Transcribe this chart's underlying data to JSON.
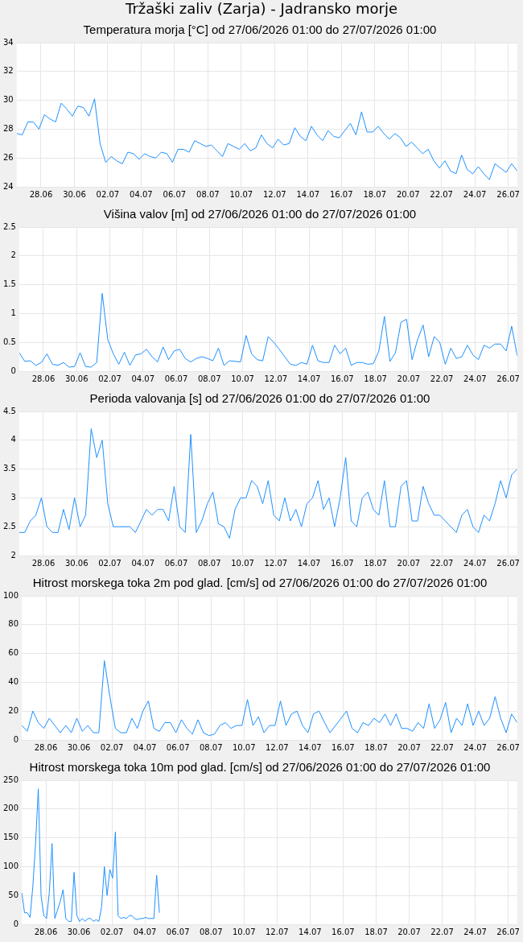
{
  "chart_data": [
    {
      "type": "line",
      "title": "Tržaški zaliv (Zarja) - Jadransko morje",
      "subtitle": "Temperatura morja [°C] od 27/06/2026 01:00 do 27/07/2026 01:00",
      "color": "#1e90ff",
      "marker": "none",
      "grid": true,
      "x": [
        "2026-06-27T01:00",
        "2026-06-27T09:00",
        "2026-06-27T17:00",
        "2026-06-28T01:00",
        "2026-06-28T09:00",
        "2026-06-28T17:00",
        "2026-06-29T01:00",
        "2026-06-29T09:00",
        "2026-06-29T17:00",
        "2026-06-30T01:00",
        "2026-06-30T09:00",
        "2026-06-30T17:00",
        "2026-07-01T01:00",
        "2026-07-01T09:00",
        "2026-07-01T17:00",
        "2026-07-02T01:00",
        "2026-07-02T09:00",
        "2026-07-02T17:00",
        "2026-07-03T01:00",
        "2026-07-03T09:00",
        "2026-07-03T17:00",
        "2026-07-04T01:00",
        "2026-07-04T09:00",
        "2026-07-04T17:00",
        "2026-07-05T01:00",
        "2026-07-05T09:00",
        "2026-07-05T17:00",
        "2026-07-06T01:00",
        "2026-07-06T09:00",
        "2026-07-06T17:00",
        "2026-07-07T01:00",
        "2026-07-07T09:00",
        "2026-07-07T17:00",
        "2026-07-08T01:00",
        "2026-07-08T09:00",
        "2026-07-08T17:00",
        "2026-07-09T01:00",
        "2026-07-09T09:00",
        "2026-07-09T17:00",
        "2026-07-10T01:00",
        "2026-07-10T09:00",
        "2026-07-10T17:00",
        "2026-07-11T01:00",
        "2026-07-11T09:00",
        "2026-07-11T17:00",
        "2026-07-12T01:00",
        "2026-07-12T09:00",
        "2026-07-12T17:00",
        "2026-07-13T01:00",
        "2026-07-13T09:00",
        "2026-07-13T17:00",
        "2026-07-14T01:00",
        "2026-07-14T09:00",
        "2026-07-14T17:00",
        "2026-07-15T01:00",
        "2026-07-15T09:00",
        "2026-07-15T17:00",
        "2026-07-16T01:00",
        "2026-07-16T09:00",
        "2026-07-16T17:00",
        "2026-07-17T01:00",
        "2026-07-17T09:00",
        "2026-07-17T17:00",
        "2026-07-18T01:00",
        "2026-07-18T09:00",
        "2026-07-18T17:00",
        "2026-07-19T01:00",
        "2026-07-19T09:00",
        "2026-07-19T17:00",
        "2026-07-20T01:00",
        "2026-07-20T09:00",
        "2026-07-20T17:00",
        "2026-07-21T01:00",
        "2026-07-21T09:00",
        "2026-07-21T17:00",
        "2026-07-22T01:00",
        "2026-07-22T09:00",
        "2026-07-22T17:00",
        "2026-07-23T01:00",
        "2026-07-23T09:00",
        "2026-07-23T17:00",
        "2026-07-24T01:00",
        "2026-07-24T09:00",
        "2026-07-24T17:00",
        "2026-07-25T01:00",
        "2026-07-25T09:00",
        "2026-07-25T17:00",
        "2026-07-26T01:00",
        "2026-07-26T09:00",
        "2026-07-26T17:00",
        "2026-07-27T01:00"
      ],
      "values": [
        27.7,
        27.6,
        28.5,
        28.5,
        28.0,
        29.0,
        28.7,
        28.5,
        29.8,
        29.4,
        28.9,
        29.6,
        29.5,
        28.9,
        30.1,
        27.0,
        25.7,
        26.1,
        25.8,
        25.6,
        26.4,
        26.3,
        25.9,
        26.3,
        26.1,
        26.0,
        26.4,
        26.3,
        25.7,
        26.6,
        26.6,
        26.4,
        27.2,
        27.0,
        26.8,
        26.9,
        26.5,
        26.1,
        27.0,
        26.8,
        26.6,
        27.0,
        26.5,
        26.7,
        27.6,
        27.0,
        26.7,
        27.3,
        26.9,
        27.0,
        28.1,
        27.5,
        27.2,
        28.2,
        27.6,
        27.2,
        27.9,
        27.5,
        27.4,
        27.9,
        28.4,
        27.6,
        29.2,
        27.8,
        27.8,
        28.2,
        27.7,
        27.3,
        27.7,
        27.4,
        26.8,
        27.1,
        26.7,
        26.3,
        26.6,
        25.8,
        25.3,
        25.8,
        25.1,
        24.9,
        26.2,
        25.2,
        24.9,
        25.4,
        24.9,
        24.5,
        25.6,
        25.3,
        25.0,
        25.6,
        25.1
      ],
      "xlim": [
        "2026-06-27T01:00",
        "2026-07-27T01:00"
      ],
      "xticks": [
        {
          "value": "2026-06-28T12:00",
          "label": "28.06"
        },
        {
          "value": "2026-06-30T12:00",
          "label": "30.06"
        },
        {
          "value": "2026-07-02T12:00",
          "label": "02.07"
        },
        {
          "value": "2026-07-04T12:00",
          "label": "04.07"
        },
        {
          "value": "2026-07-06T12:00",
          "label": "06.07"
        },
        {
          "value": "2026-07-08T12:00",
          "label": "08.07"
        },
        {
          "value": "2026-07-10T12:00",
          "label": "10.07"
        },
        {
          "value": "2026-07-12T12:00",
          "label": "12.07"
        },
        {
          "value": "2026-07-14T12:00",
          "label": "14.07"
        },
        {
          "value": "2026-07-16T12:00",
          "label": "16.07"
        },
        {
          "value": "2026-07-18T12:00",
          "label": "18.07"
        },
        {
          "value": "2026-07-20T12:00",
          "label": "20.07"
        },
        {
          "value": "2026-07-22T12:00",
          "label": "22.07"
        },
        {
          "value": "2026-07-24T12:00",
          "label": "24.07"
        },
        {
          "value": "2026-07-26T12:00",
          "label": "26.07"
        }
      ],
      "ylim": [
        24,
        34
      ],
      "yticks": [
        24,
        26,
        28,
        30,
        32,
        34
      ]
    },
    {
      "type": "line",
      "title": "Višina valov [m] od 27/06/2026 01:00 do 27/07/2026 01:00",
      "color": "#1e90ff",
      "marker": "none",
      "grid": true,
      "x": [
        "2026-06-27T01:00",
        "2026-06-27T09:00",
        "2026-06-27T17:00",
        "2026-06-28T01:00",
        "2026-06-28T09:00",
        "2026-06-28T17:00",
        "2026-06-29T01:00",
        "2026-06-29T09:00",
        "2026-06-29T17:00",
        "2026-06-30T01:00",
        "2026-06-30T09:00",
        "2026-06-30T17:00",
        "2026-07-01T01:00",
        "2026-07-01T09:00",
        "2026-07-01T17:00",
        "2026-07-02T01:00",
        "2026-07-02T09:00",
        "2026-07-02T17:00",
        "2026-07-03T01:00",
        "2026-07-03T09:00",
        "2026-07-03T17:00",
        "2026-07-04T01:00",
        "2026-07-04T09:00",
        "2026-07-04T17:00",
        "2026-07-05T01:00",
        "2026-07-05T09:00",
        "2026-07-05T17:00",
        "2026-07-06T01:00",
        "2026-07-06T09:00",
        "2026-07-06T17:00",
        "2026-07-07T01:00",
        "2026-07-07T09:00",
        "2026-07-07T17:00",
        "2026-07-08T01:00",
        "2026-07-08T09:00",
        "2026-07-08T17:00",
        "2026-07-09T01:00",
        "2026-07-09T09:00",
        "2026-07-09T17:00",
        "2026-07-10T01:00",
        "2026-07-10T09:00",
        "2026-07-10T17:00",
        "2026-07-11T01:00",
        "2026-07-11T09:00",
        "2026-07-11T17:00",
        "2026-07-12T01:00",
        "2026-07-12T09:00",
        "2026-07-12T17:00",
        "2026-07-13T01:00",
        "2026-07-13T09:00",
        "2026-07-13T17:00",
        "2026-07-14T01:00",
        "2026-07-14T09:00",
        "2026-07-14T17:00",
        "2026-07-15T01:00",
        "2026-07-15T09:00",
        "2026-07-15T17:00",
        "2026-07-16T01:00",
        "2026-07-16T09:00",
        "2026-07-16T17:00",
        "2026-07-17T01:00",
        "2026-07-17T09:00",
        "2026-07-17T17:00",
        "2026-07-18T01:00",
        "2026-07-18T09:00",
        "2026-07-18T17:00",
        "2026-07-19T01:00",
        "2026-07-19T09:00",
        "2026-07-19T17:00",
        "2026-07-20T01:00",
        "2026-07-20T09:00",
        "2026-07-20T17:00",
        "2026-07-21T01:00",
        "2026-07-21T09:00",
        "2026-07-21T17:00",
        "2026-07-22T01:00",
        "2026-07-22T09:00",
        "2026-07-22T17:00",
        "2026-07-23T01:00",
        "2026-07-23T09:00",
        "2026-07-23T17:00",
        "2026-07-24T01:00",
        "2026-07-24T09:00",
        "2026-07-24T17:00",
        "2026-07-25T01:00",
        "2026-07-25T09:00",
        "2026-07-25T17:00",
        "2026-07-26T01:00",
        "2026-07-26T09:00",
        "2026-07-26T17:00",
        "2026-07-27T01:00"
      ],
      "values": [
        0.32,
        0.17,
        0.18,
        0.1,
        0.15,
        0.3,
        0.12,
        0.1,
        0.15,
        0.07,
        0.08,
        0.32,
        0.08,
        0.07,
        0.15,
        1.35,
        0.55,
        0.3,
        0.12,
        0.33,
        0.1,
        0.28,
        0.3,
        0.38,
        0.25,
        0.16,
        0.42,
        0.2,
        0.35,
        0.38,
        0.22,
        0.16,
        0.22,
        0.25,
        0.22,
        0.18,
        0.4,
        0.1,
        0.18,
        0.17,
        0.16,
        0.62,
        0.3,
        0.2,
        0.18,
        0.6,
        0.5,
        0.38,
        0.25,
        0.12,
        0.1,
        0.15,
        0.12,
        0.45,
        0.18,
        0.15,
        0.15,
        0.45,
        0.3,
        0.4,
        0.1,
        0.15,
        0.15,
        0.12,
        0.13,
        0.35,
        0.95,
        0.17,
        0.32,
        0.85,
        0.9,
        0.2,
        0.55,
        0.8,
        0.25,
        0.6,
        0.5,
        0.12,
        0.4,
        0.22,
        0.25,
        0.45,
        0.28,
        0.2,
        0.45,
        0.4,
        0.47,
        0.47,
        0.35,
        0.78,
        0.27
      ],
      "xlim": [
        "2026-06-27T01:00",
        "2026-07-27T01:00"
      ],
      "xticks": [
        {
          "value": "2026-06-28T12:00",
          "label": "28.06"
        },
        {
          "value": "2026-06-30T12:00",
          "label": "30.06"
        },
        {
          "value": "2026-07-02T12:00",
          "label": "02.07"
        },
        {
          "value": "2026-07-04T12:00",
          "label": "04.07"
        },
        {
          "value": "2026-07-06T12:00",
          "label": "06.07"
        },
        {
          "value": "2026-07-08T12:00",
          "label": "08.07"
        },
        {
          "value": "2026-07-10T12:00",
          "label": "10.07"
        },
        {
          "value": "2026-07-12T12:00",
          "label": "12.07"
        },
        {
          "value": "2026-07-14T12:00",
          "label": "14.07"
        },
        {
          "value": "2026-07-16T12:00",
          "label": "16.07"
        },
        {
          "value": "2026-07-18T12:00",
          "label": "18.07"
        },
        {
          "value": "2026-07-20T12:00",
          "label": "20.07"
        },
        {
          "value": "2026-07-22T12:00",
          "label": "22.07"
        },
        {
          "value": "2026-07-24T12:00",
          "label": "24.07"
        },
        {
          "value": "2026-07-26T12:00",
          "label": "26.07"
        }
      ],
      "ylim": [
        0,
        2.5
      ],
      "yticks": [
        0,
        0.5,
        1,
        1.5,
        2,
        2.5
      ]
    },
    {
      "type": "line",
      "title": "Perioda valovanja [s] od 27/06/2026 01:00 do 27/07/2026 01:00",
      "color": "#1e90ff",
      "marker": "none",
      "grid": true,
      "x": [
        "2026-06-27T01:00",
        "2026-06-27T09:00",
        "2026-06-27T17:00",
        "2026-06-28T01:00",
        "2026-06-28T09:00",
        "2026-06-28T17:00",
        "2026-06-29T01:00",
        "2026-06-29T09:00",
        "2026-06-29T17:00",
        "2026-06-30T01:00",
        "2026-06-30T09:00",
        "2026-06-30T17:00",
        "2026-07-01T01:00",
        "2026-07-01T09:00",
        "2026-07-01T17:00",
        "2026-07-02T01:00",
        "2026-07-02T09:00",
        "2026-07-02T17:00",
        "2026-07-03T01:00",
        "2026-07-03T09:00",
        "2026-07-03T17:00",
        "2026-07-04T01:00",
        "2026-07-04T09:00",
        "2026-07-04T17:00",
        "2026-07-05T01:00",
        "2026-07-05T09:00",
        "2026-07-05T17:00",
        "2026-07-06T01:00",
        "2026-07-06T09:00",
        "2026-07-06T17:00",
        "2026-07-07T01:00",
        "2026-07-07T09:00",
        "2026-07-07T17:00",
        "2026-07-08T01:00",
        "2026-07-08T09:00",
        "2026-07-08T17:00",
        "2026-07-09T01:00",
        "2026-07-09T09:00",
        "2026-07-09T17:00",
        "2026-07-10T01:00",
        "2026-07-10T09:00",
        "2026-07-10T17:00",
        "2026-07-11T01:00",
        "2026-07-11T09:00",
        "2026-07-11T17:00",
        "2026-07-12T01:00",
        "2026-07-12T09:00",
        "2026-07-12T17:00",
        "2026-07-13T01:00",
        "2026-07-13T09:00",
        "2026-07-13T17:00",
        "2026-07-14T01:00",
        "2026-07-14T09:00",
        "2026-07-14T17:00",
        "2026-07-15T01:00",
        "2026-07-15T09:00",
        "2026-07-15T17:00",
        "2026-07-16T01:00",
        "2026-07-16T09:00",
        "2026-07-16T17:00",
        "2026-07-17T01:00",
        "2026-07-17T09:00",
        "2026-07-17T17:00",
        "2026-07-18T01:00",
        "2026-07-18T09:00",
        "2026-07-18T17:00",
        "2026-07-19T01:00",
        "2026-07-19T09:00",
        "2026-07-19T17:00",
        "2026-07-20T01:00",
        "2026-07-20T09:00",
        "2026-07-20T17:00",
        "2026-07-21T01:00",
        "2026-07-21T09:00",
        "2026-07-21T17:00",
        "2026-07-22T01:00",
        "2026-07-22T09:00",
        "2026-07-22T17:00",
        "2026-07-23T01:00",
        "2026-07-23T09:00",
        "2026-07-23T17:00",
        "2026-07-24T01:00",
        "2026-07-24T09:00",
        "2026-07-24T17:00",
        "2026-07-25T01:00",
        "2026-07-25T09:00",
        "2026-07-25T17:00",
        "2026-07-26T01:00",
        "2026-07-26T09:00",
        "2026-07-26T17:00",
        "2026-07-27T01:00"
      ],
      "values": [
        2.4,
        2.4,
        2.6,
        2.7,
        3.0,
        2.5,
        2.4,
        2.4,
        2.8,
        2.45,
        3.0,
        2.5,
        2.7,
        4.2,
        3.7,
        4.0,
        2.9,
        2.5,
        2.5,
        2.5,
        2.5,
        2.4,
        2.6,
        2.8,
        2.7,
        2.8,
        2.8,
        2.6,
        3.2,
        2.5,
        2.4,
        4.1,
        2.4,
        2.6,
        2.9,
        3.1,
        2.55,
        2.5,
        2.3,
        2.8,
        3.0,
        3.0,
        3.3,
        3.2,
        2.9,
        3.3,
        2.7,
        2.6,
        3.0,
        2.6,
        2.8,
        2.5,
        2.9,
        3.0,
        3.3,
        2.8,
        3.0,
        2.5,
        3.0,
        3.7,
        2.6,
        2.5,
        3.0,
        3.1,
        2.8,
        2.7,
        3.3,
        2.5,
        2.5,
        3.2,
        3.3,
        2.6,
        2.6,
        3.2,
        2.9,
        2.7,
        2.7,
        2.6,
        2.5,
        2.4,
        2.7,
        2.8,
        2.5,
        2.4,
        2.7,
        2.6,
        2.9,
        3.3,
        3.0,
        3.4,
        3.5
      ],
      "xlim": [
        "2026-06-27T01:00",
        "2026-07-27T01:00"
      ],
      "xticks": [
        {
          "value": "2026-06-28T12:00",
          "label": "28.06"
        },
        {
          "value": "2026-06-30T12:00",
          "label": "30.06"
        },
        {
          "value": "2026-07-02T12:00",
          "label": "02.07"
        },
        {
          "value": "2026-07-04T12:00",
          "label": "04.07"
        },
        {
          "value": "2026-07-06T12:00",
          "label": "06.07"
        },
        {
          "value": "2026-07-08T12:00",
          "label": "08.07"
        },
        {
          "value": "2026-07-10T12:00",
          "label": "10.07"
        },
        {
          "value": "2026-07-12T12:00",
          "label": "12.07"
        },
        {
          "value": "2026-07-14T12:00",
          "label": "14.07"
        },
        {
          "value": "2026-07-16T12:00",
          "label": "16.07"
        },
        {
          "value": "2026-07-18T12:00",
          "label": "18.07"
        },
        {
          "value": "2026-07-20T12:00",
          "label": "20.07"
        },
        {
          "value": "2026-07-22T12:00",
          "label": "22.07"
        },
        {
          "value": "2026-07-24T12:00",
          "label": "24.07"
        },
        {
          "value": "2026-07-26T12:00",
          "label": "26.07"
        }
      ],
      "ylim": [
        2,
        4.5
      ],
      "yticks": [
        2,
        2.5,
        3,
        3.5,
        4,
        4.5
      ]
    },
    {
      "type": "line",
      "title": "Hitrost morskega toka 2m pod glad. [cm/s] od 27/06/2026 01:00 do 27/07/2026 01:00",
      "color": "#1e90ff",
      "marker": "none",
      "grid": true,
      "x": [
        "2026-06-27T01:00",
        "2026-06-27T09:00",
        "2026-06-27T17:00",
        "2026-06-28T01:00",
        "2026-06-28T09:00",
        "2026-06-28T17:00",
        "2026-06-29T01:00",
        "2026-06-29T09:00",
        "2026-06-29T17:00",
        "2026-06-30T01:00",
        "2026-06-30T09:00",
        "2026-06-30T17:00",
        "2026-07-01T01:00",
        "2026-07-01T09:00",
        "2026-07-01T17:00",
        "2026-07-02T01:00",
        "2026-07-02T09:00",
        "2026-07-02T17:00",
        "2026-07-03T01:00",
        "2026-07-03T09:00",
        "2026-07-03T17:00",
        "2026-07-04T01:00",
        "2026-07-04T09:00",
        "2026-07-04T17:00",
        "2026-07-05T01:00",
        "2026-07-05T09:00",
        "2026-07-05T17:00",
        "2026-07-06T01:00",
        "2026-07-06T09:00",
        "2026-07-06T17:00",
        "2026-07-07T01:00",
        "2026-07-07T09:00",
        "2026-07-07T17:00",
        "2026-07-08T01:00",
        "2026-07-08T09:00",
        "2026-07-08T17:00",
        "2026-07-09T01:00",
        "2026-07-09T09:00",
        "2026-07-09T17:00",
        "2026-07-10T01:00",
        "2026-07-10T09:00",
        "2026-07-10T17:00",
        "2026-07-11T01:00",
        "2026-07-11T09:00",
        "2026-07-11T17:00",
        "2026-07-12T01:00",
        "2026-07-12T09:00",
        "2026-07-12T17:00",
        "2026-07-13T01:00",
        "2026-07-13T09:00",
        "2026-07-13T17:00",
        "2026-07-14T01:00",
        "2026-07-14T09:00",
        "2026-07-14T17:00",
        "2026-07-15T01:00",
        "2026-07-15T09:00",
        "2026-07-15T17:00",
        "2026-07-16T01:00",
        "2026-07-16T09:00",
        "2026-07-16T17:00",
        "2026-07-17T01:00",
        "2026-07-17T09:00",
        "2026-07-17T17:00",
        "2026-07-18T01:00",
        "2026-07-18T09:00",
        "2026-07-18T17:00",
        "2026-07-19T01:00",
        "2026-07-19T09:00",
        "2026-07-19T17:00",
        "2026-07-20T01:00",
        "2026-07-20T09:00",
        "2026-07-20T17:00",
        "2026-07-21T01:00",
        "2026-07-21T09:00",
        "2026-07-21T17:00",
        "2026-07-22T01:00",
        "2026-07-22T09:00",
        "2026-07-22T17:00",
        "2026-07-23T01:00",
        "2026-07-23T09:00",
        "2026-07-23T17:00",
        "2026-07-24T01:00",
        "2026-07-24T09:00",
        "2026-07-24T17:00",
        "2026-07-25T01:00",
        "2026-07-25T09:00",
        "2026-07-25T17:00",
        "2026-07-26T01:00",
        "2026-07-26T09:00",
        "2026-07-26T17:00",
        "2026-07-27T01:00"
      ],
      "values": [
        10,
        6,
        20,
        12,
        8,
        15,
        10,
        5,
        10,
        5,
        15,
        6,
        10,
        5,
        5,
        55,
        30,
        8,
        5,
        5,
        15,
        8,
        20,
        27,
        8,
        6,
        12,
        12,
        5,
        14,
        8,
        4,
        14,
        5,
        3,
        4,
        10,
        12,
        8,
        10,
        10,
        28,
        10,
        16,
        5,
        10,
        10,
        27,
        10,
        18,
        20,
        10,
        5,
        18,
        20,
        12,
        5,
        10,
        15,
        20,
        8,
        5,
        12,
        10,
        15,
        12,
        18,
        10,
        18,
        8,
        8,
        6,
        12,
        8,
        25,
        8,
        14,
        26,
        5,
        15,
        10,
        25,
        10,
        20,
        10,
        15,
        30,
        15,
        5,
        18,
        12
      ],
      "xlim": [
        "2026-06-27T01:00",
        "2026-07-27T01:00"
      ],
      "xticks": [
        {
          "value": "2026-06-28T12:00",
          "label": "28.06"
        },
        {
          "value": "2026-06-30T12:00",
          "label": "30.06"
        },
        {
          "value": "2026-07-02T12:00",
          "label": "02.07"
        },
        {
          "value": "2026-07-04T12:00",
          "label": "04.07"
        },
        {
          "value": "2026-07-06T12:00",
          "label": "06.07"
        },
        {
          "value": "2026-07-08T12:00",
          "label": "08.07"
        },
        {
          "value": "2026-07-10T12:00",
          "label": "10.07"
        },
        {
          "value": "2026-07-12T12:00",
          "label": "12.07"
        },
        {
          "value": "2026-07-14T12:00",
          "label": "14.07"
        },
        {
          "value": "2026-07-16T12:00",
          "label": "16.07"
        },
        {
          "value": "2026-07-18T12:00",
          "label": "18.07"
        },
        {
          "value": "2026-07-20T12:00",
          "label": "20.07"
        },
        {
          "value": "2026-07-22T12:00",
          "label": "22.07"
        },
        {
          "value": "2026-07-24T12:00",
          "label": "24.07"
        },
        {
          "value": "2026-07-26T12:00",
          "label": "26.07"
        }
      ],
      "ylim": [
        0,
        100
      ],
      "yticks": [
        0,
        20,
        40,
        60,
        80,
        100
      ]
    },
    {
      "type": "line",
      "title": "Hitrost morskega toka 10m pod glad. [cm/s] od 27/06/2026 01:00 do 27/07/2026 01:00",
      "color": "#1e90ff",
      "marker": "none",
      "grid": true,
      "x": [
        "2026-06-27T01:00",
        "2026-06-27T05:00",
        "2026-06-27T09:00",
        "2026-06-27T13:00",
        "2026-06-27T17:00",
        "2026-06-27T21:00",
        "2026-06-28T01:00",
        "2026-06-28T05:00",
        "2026-06-28T09:00",
        "2026-06-28T13:00",
        "2026-06-28T17:00",
        "2026-06-28T21:00",
        "2026-06-29T01:00",
        "2026-06-29T05:00",
        "2026-06-29T09:00",
        "2026-06-29T13:00",
        "2026-06-29T17:00",
        "2026-06-29T21:00",
        "2026-06-30T01:00",
        "2026-06-30T05:00",
        "2026-06-30T09:00",
        "2026-06-30T13:00",
        "2026-06-30T17:00",
        "2026-06-30T21:00",
        "2026-07-01T01:00",
        "2026-07-01T05:00",
        "2026-07-01T09:00",
        "2026-07-01T13:00",
        "2026-07-01T17:00",
        "2026-07-01T21:00",
        "2026-07-02T01:00",
        "2026-07-02T05:00",
        "2026-07-02T09:00",
        "2026-07-02T13:00",
        "2026-07-02T17:00",
        "2026-07-02T21:00",
        "2026-07-03T01:00",
        "2026-07-03T05:00",
        "2026-07-03T09:00",
        "2026-07-03T13:00",
        "2026-07-03T17:00",
        "2026-07-03T21:00",
        "2026-07-04T01:00",
        "2026-07-04T05:00",
        "2026-07-04T09:00",
        "2026-07-04T13:00",
        "2026-07-04T17:00",
        "2026-07-04T21:00",
        "2026-07-05T01:00",
        "2026-07-05T05:00",
        "2026-07-05T09:00"
      ],
      "values": [
        55,
        20,
        20,
        12,
        65,
        140,
        235,
        50,
        15,
        10,
        55,
        140,
        10,
        25,
        40,
        60,
        10,
        5,
        5,
        90,
        15,
        5,
        10,
        5,
        10,
        10,
        5,
        8,
        5,
        30,
        100,
        50,
        95,
        80,
        160,
        15,
        10,
        12,
        10,
        15,
        15,
        10,
        8,
        10,
        10,
        12,
        10,
        10,
        10,
        85,
        20
      ],
      "xlim": [
        "2026-06-27T01:00",
        "2026-07-27T01:00"
      ],
      "xticks": [
        {
          "value": "2026-06-28T12:00",
          "label": "28.06"
        },
        {
          "value": "2026-06-30T12:00",
          "label": "30.06"
        },
        {
          "value": "2026-07-02T12:00",
          "label": "02.07"
        },
        {
          "value": "2026-07-04T12:00",
          "label": "04.07"
        },
        {
          "value": "2026-07-06T12:00",
          "label": "06.07"
        },
        {
          "value": "2026-07-08T12:00",
          "label": "08.07"
        },
        {
          "value": "2026-07-10T12:00",
          "label": "10.07"
        },
        {
          "value": "2026-07-12T12:00",
          "label": "12.07"
        },
        {
          "value": "2026-07-14T12:00",
          "label": "14.07"
        },
        {
          "value": "2026-07-16T12:00",
          "label": "16.07"
        },
        {
          "value": "2026-07-18T12:00",
          "label": "18.07"
        },
        {
          "value": "2026-07-20T12:00",
          "label": "20.07"
        },
        {
          "value": "2026-07-22T12:00",
          "label": "22.07"
        },
        {
          "value": "2026-07-24T12:00",
          "label": "24.07"
        },
        {
          "value": "2026-07-26T12:00",
          "label": "26.07"
        }
      ],
      "ylim": [
        0,
        250
      ],
      "yticks": [
        0,
        50,
        100,
        150,
        200,
        250
      ]
    }
  ]
}
